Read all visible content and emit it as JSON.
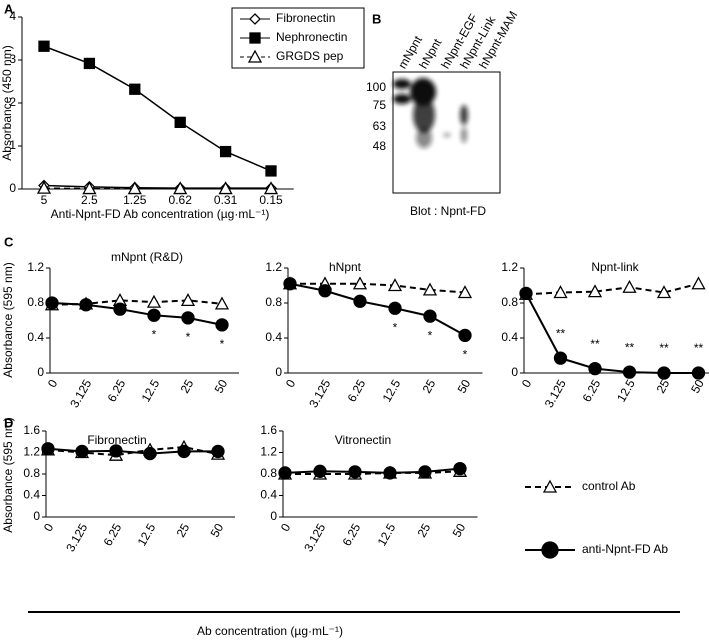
{
  "panels": [
    "A",
    "B",
    "C",
    "D"
  ],
  "blot": {
    "lanes": [
      "mNpnt",
      "hNpnt",
      "hNpnt-EGF",
      "hNpnt-Link",
      "hNpnt-MAM"
    ],
    "markers": [
      100,
      75,
      63,
      48
    ],
    "caption": "Blot : Npnt-FD"
  },
  "figure": {
    "xlabel": "Ab concentration (µg·mL⁻¹)"
  },
  "chart_data": [
    {
      "type": "line",
      "xlabel": "Anti-Npnt-FD Ab concentration (µg·mL⁻¹)",
      "ylabel": "Absorbance (450 nm)",
      "categories": [
        "5",
        "2.5",
        "1.25",
        "0.62",
        "0.31",
        "0.15"
      ],
      "ylim": [
        0,
        4
      ],
      "yticks": [
        0,
        1,
        2,
        3,
        4
      ],
      "legend": "upper right",
      "series": [
        {
          "name": "Fibronectin",
          "color": "#000000",
          "marker": "diamond",
          "marker_fill": "#ffffff",
          "dashed": false,
          "values": [
            0.08,
            0.05,
            0.03,
            0.02,
            0.02,
            0.02
          ]
        },
        {
          "name": "Nephronectin",
          "color": "#000000",
          "marker": "square",
          "marker_fill": "#000000",
          "dashed": false,
          "values": [
            3.32,
            2.92,
            2.32,
            1.55,
            0.87,
            0.42
          ]
        },
        {
          "name": "GRGDS pep",
          "color": "#000000",
          "marker": "triangle",
          "marker_fill": "#ffffff",
          "dashed": true,
          "values": [
            0.02,
            0.01,
            0.01,
            0.01,
            0.01,
            0.01
          ]
        }
      ]
    },
    {
      "type": "line",
      "title": "mNpnt (R&D)",
      "ylabel": "Absorbance (595 nm)",
      "categories": [
        "0",
        "3.125",
        "6.25",
        "12.5",
        "25",
        "50"
      ],
      "ylim": [
        0,
        1.2
      ],
      "yticks": [
        0,
        0.4,
        0.8,
        1.2
      ],
      "significance": [
        null,
        null,
        null,
        "*",
        "*",
        "*"
      ],
      "series": [
        {
          "color": "#000000",
          "marker": "triangle",
          "marker_fill": "#ffffff",
          "dashed": true,
          "values": [
            0.78,
            0.79,
            0.83,
            0.81,
            0.83,
            0.79
          ]
        },
        {
          "color": "#000000",
          "marker": "circle",
          "marker_fill": "#000000",
          "dashed": false,
          "values": [
            0.8,
            0.78,
            0.73,
            0.66,
            0.63,
            0.55
          ]
        }
      ]
    },
    {
      "type": "line",
      "title": "hNpnt",
      "categories": [
        "0",
        "3.125",
        "6.25",
        "12.5",
        "25",
        "50"
      ],
      "ylim": [
        0,
        1.2
      ],
      "yticks": [
        0,
        0.4,
        0.8,
        1.2
      ],
      "significance": [
        null,
        null,
        null,
        "*",
        "*",
        "*"
      ],
      "series": [
        {
          "color": "#000000",
          "marker": "triangle",
          "marker_fill": "#ffffff",
          "dashed": true,
          "values": [
            1.02,
            1.02,
            1.02,
            1.0,
            0.95,
            0.92
          ]
        },
        {
          "color": "#000000",
          "marker": "circle",
          "marker_fill": "#000000",
          "dashed": false,
          "values": [
            1.02,
            0.94,
            0.82,
            0.74,
            0.65,
            0.43
          ]
        }
      ]
    },
    {
      "type": "line",
      "title": "Npnt-link",
      "categories": [
        "0",
        "3.125",
        "6.25",
        "12.5",
        "25",
        "50"
      ],
      "ylim": [
        0,
        1.2
      ],
      "yticks": [
        0,
        0.4,
        0.8,
        1.2
      ],
      "significance": [
        null,
        "**",
        "**",
        "**",
        "**",
        "**"
      ],
      "series": [
        {
          "color": "#000000",
          "marker": "triangle",
          "marker_fill": "#ffffff",
          "dashed": true,
          "values": [
            0.9,
            0.92,
            0.93,
            0.98,
            0.92,
            1.02
          ]
        },
        {
          "color": "#000000",
          "marker": "circle",
          "marker_fill": "#000000",
          "dashed": false,
          "values": [
            0.91,
            0.17,
            0.05,
            0.01,
            0,
            0
          ]
        }
      ]
    },
    {
      "type": "line",
      "title": "Fibronectin",
      "ylabel": "Absorbance (595 nm)",
      "categories": [
        "0",
        "3.125",
        "6.25",
        "12.5",
        "25",
        "50"
      ],
      "ylim": [
        0,
        1.6
      ],
      "yticks": [
        0,
        0.4,
        0.8,
        1.2,
        1.6
      ],
      "series": [
        {
          "color": "#000000",
          "marker": "triangle",
          "marker_fill": "#ffffff",
          "dashed": true,
          "values": [
            1.25,
            1.2,
            1.15,
            1.25,
            1.3,
            1.17
          ]
        },
        {
          "color": "#000000",
          "marker": "circle",
          "marker_fill": "#000000",
          "dashed": false,
          "values": [
            1.27,
            1.22,
            1.23,
            1.18,
            1.22,
            1.22
          ]
        }
      ]
    },
    {
      "type": "line",
      "title": "Vitronectin",
      "categories": [
        "0",
        "3.125",
        "6.25",
        "12.5",
        "25",
        "50"
      ],
      "ylim": [
        0,
        1.6
      ],
      "yticks": [
        0,
        0.4,
        0.8,
        1.2,
        1.6
      ],
      "legend": "right outside",
      "series": [
        {
          "name": "control Ab",
          "color": "#000000",
          "marker": "triangle",
          "marker_fill": "#ffffff",
          "dashed": true,
          "values": [
            0.8,
            0.8,
            0.8,
            0.82,
            0.82,
            0.85
          ]
        },
        {
          "name": "anti-Npnt-FD Ab",
          "color": "#000000",
          "marker": "circle",
          "marker_fill": "#000000",
          "dashed": false,
          "values": [
            0.82,
            0.85,
            0.84,
            0.82,
            0.84,
            0.9
          ]
        }
      ]
    }
  ]
}
